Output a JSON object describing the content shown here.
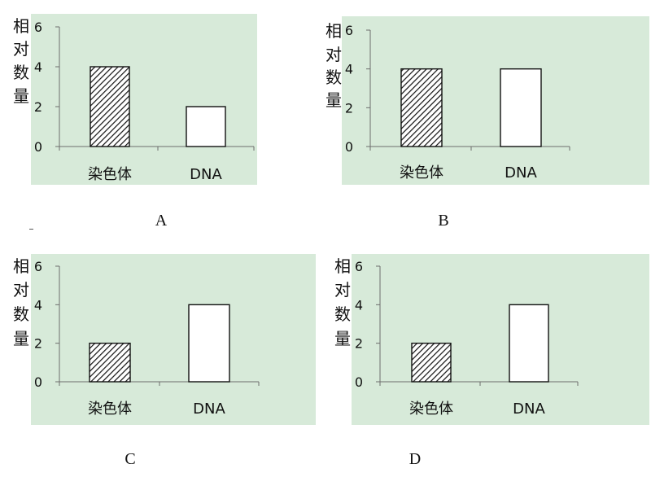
{
  "chart_data": [
    {
      "type": "bar",
      "panel": "A",
      "categories": [
        "染色体",
        "DNA"
      ],
      "values": [
        4,
        2
      ],
      "ylabel": "相对数量",
      "yticks": [
        0,
        2,
        4,
        6
      ],
      "ylim": [
        0,
        6
      ],
      "bar_fills": [
        "hatched",
        "white"
      ]
    },
    {
      "type": "bar",
      "panel": "B",
      "categories": [
        "染色体",
        "DNA"
      ],
      "values": [
        4,
        4
      ],
      "ylabel": "相对数量",
      "yticks": [
        0,
        2,
        4,
        6
      ],
      "ylim": [
        0,
        6
      ],
      "bar_fills": [
        "hatched",
        "white"
      ]
    },
    {
      "type": "bar",
      "panel": "C",
      "categories": [
        "染色体",
        "DNA"
      ],
      "values": [
        2,
        4
      ],
      "ylabel": "相对数量",
      "yticks": [
        0,
        2,
        4,
        6
      ],
      "ylim": [
        0,
        6
      ],
      "bar_fills": [
        "hatched",
        "white"
      ]
    },
    {
      "type": "bar",
      "panel": "D",
      "categories": [
        "染色体",
        "DNA"
      ],
      "values": [
        2,
        4
      ],
      "ylabel": "相对数量",
      "yticks": [
        0,
        2,
        4,
        6
      ],
      "ylim": [
        0,
        6
      ],
      "bar_fills": [
        "hatched",
        "white"
      ]
    }
  ],
  "colors": {
    "plot_background": "#d7ead9",
    "axis": "#6d6d6d",
    "bar_outline": "#111111",
    "hatch": "#111111"
  }
}
